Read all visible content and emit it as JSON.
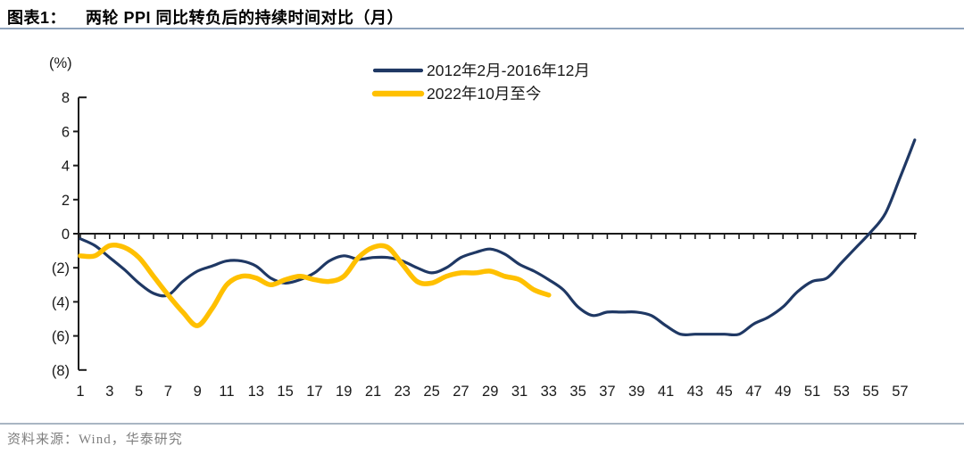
{
  "header": {
    "label": "图表1：",
    "title": "两轮 PPI 同比转负后的持续时间对比（月）"
  },
  "footer": {
    "source": "资料来源：Wind，华泰研究"
  },
  "colors": {
    "series_2012": "#1F3864",
    "series_2022": "#FFC000",
    "axis": "#1a1a1a",
    "tick_text": "#1a1a1a",
    "title_underline": "#8fa3bc",
    "footer_divider": "#a9b6c3",
    "source_text": "#7f7f7f"
  },
  "chart_data": {
    "type": "line",
    "title": "两轮PPI同比转负后的持续时间对比（月）",
    "xlabel": "",
    "ylabel": "(%)",
    "unit_label": "(%)",
    "grid": false,
    "legend_position": "top-center",
    "x_start": 1,
    "x_max": 58,
    "x_tick_labels": [
      1,
      3,
      5,
      7,
      9,
      11,
      13,
      15,
      17,
      19,
      21,
      23,
      25,
      27,
      29,
      31,
      33,
      35,
      37,
      39,
      41,
      43,
      45,
      47,
      49,
      51,
      53,
      55,
      57
    ],
    "ylim": [
      -8,
      8
    ],
    "y_ticks": [
      8,
      6,
      4,
      2,
      0,
      -2,
      -4,
      -6,
      -8
    ],
    "y_tick_labels": [
      "8",
      "6",
      "4",
      "2",
      "0",
      "(2)",
      "(4)",
      "(6)",
      "(8)"
    ],
    "series": [
      {
        "name": "2012年2月-2016年12月",
        "color": "#1F3864",
        "stroke_width": 3.2,
        "values": [
          -0.3,
          -0.7,
          -1.4,
          -2.1,
          -2.9,
          -3.5,
          -3.6,
          -2.8,
          -2.2,
          -1.9,
          -1.6,
          -1.6,
          -1.9,
          -2.6,
          -2.9,
          -2.7,
          -2.3,
          -1.6,
          -1.3,
          -1.5,
          -1.4,
          -1.4,
          -1.6,
          -2.0,
          -2.3,
          -2.0,
          -1.4,
          -1.1,
          -0.9,
          -1.2,
          -1.8,
          -2.2,
          -2.7,
          -3.3,
          -4.3,
          -4.8,
          -4.6,
          -4.6,
          -4.6,
          -4.8,
          -5.4,
          -5.9,
          -5.9,
          -5.9,
          -5.9,
          -5.9,
          -5.3,
          -4.9,
          -4.3,
          -3.4,
          -2.8,
          -2.6,
          -1.7,
          -0.8,
          0.1,
          1.2,
          3.3,
          5.5
        ]
      },
      {
        "name": "2022年10月至今",
        "color": "#FFC000",
        "stroke_width": 5.5,
        "values": [
          -1.3,
          -1.3,
          -0.7,
          -0.8,
          -1.4,
          -2.5,
          -3.6,
          -4.6,
          -5.4,
          -4.4,
          -3.0,
          -2.5,
          -2.6,
          -3.0,
          -2.7,
          -2.5,
          -2.7,
          -2.8,
          -2.5,
          -1.4,
          -0.8,
          -0.8,
          -1.8,
          -2.8,
          -2.9,
          -2.5,
          -2.3,
          -2.3,
          -2.2,
          -2.5,
          -2.7,
          -3.3,
          -3.6
        ]
      }
    ]
  }
}
